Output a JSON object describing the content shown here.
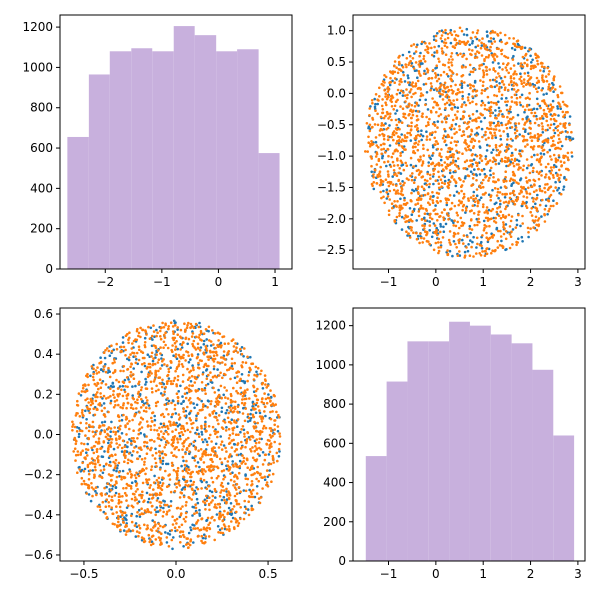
{
  "figure": {
    "colors": {
      "histogram": "#c8b0dd",
      "scatter_primary": "#1f77b4",
      "scatter_secondary": "#ff7f0e"
    }
  },
  "chart_data": [
    {
      "type": "bar",
      "subtype": "histogram",
      "title": "",
      "xlabel": "",
      "ylabel": "",
      "xlim": [
        -2.8,
        1.3
      ],
      "ylim": [
        0,
        1260
      ],
      "bin_edges": [
        -2.67,
        -2.29,
        -1.92,
        -1.54,
        -1.17,
        -0.79,
        -0.42,
        -0.04,
        0.33,
        0.71,
        1.08
      ],
      "values": [
        655,
        965,
        1080,
        1095,
        1080,
        1205,
        1160,
        1080,
        1090,
        575
      ],
      "x_ticks": [
        -2,
        -1,
        0,
        1
      ],
      "y_ticks": [
        0,
        200,
        400,
        600,
        800,
        1000,
        1200
      ],
      "x_tick_labels": [
        "−2",
        "−1",
        "0",
        "1"
      ],
      "y_tick_labels": [
        "0",
        "200",
        "400",
        "600",
        "800",
        "1000",
        "1200"
      ]
    },
    {
      "type": "scatter",
      "title": "",
      "xlabel": "",
      "ylabel": "",
      "xlim": [
        -1.75,
        3.15
      ],
      "ylim": [
        -2.8,
        1.25
      ],
      "shape": {
        "center": [
          0.7,
          -0.78
        ],
        "rx": 2.2,
        "ry": 1.85
      },
      "series": [
        {
          "color": "#ff7f0e",
          "count": 1900
        },
        {
          "color": "#1f77b4",
          "count": 650
        }
      ],
      "x_ticks": [
        -1,
        0,
        1,
        2,
        3
      ],
      "y_ticks": [
        -2.5,
        -2.0,
        -1.5,
        -1.0,
        -0.5,
        0.0,
        0.5,
        1.0
      ],
      "x_tick_labels": [
        "−1",
        "0",
        "1",
        "2",
        "3"
      ],
      "y_tick_labels": [
        "−2.5",
        "−2.0",
        "−1.5",
        "−1.0",
        "−0.5",
        "0.0",
        "0.5",
        "1.0"
      ]
    },
    {
      "type": "scatter",
      "title": "",
      "xlabel": "",
      "ylabel": "",
      "xlim": [
        -0.63,
        0.63
      ],
      "ylim": [
        -0.63,
        0.63
      ],
      "shape": {
        "center": [
          0.0,
          0.0
        ],
        "rx": 0.57,
        "ry": 0.57
      },
      "series": [
        {
          "color": "#ff7f0e",
          "count": 1900
        },
        {
          "color": "#1f77b4",
          "count": 650
        }
      ],
      "x_ticks": [
        -0.5,
        0.0,
        0.5
      ],
      "y_ticks": [
        -0.6,
        -0.4,
        -0.2,
        0.0,
        0.2,
        0.4,
        0.6
      ],
      "x_tick_labels": [
        "−0.5",
        "0.0",
        "0.5"
      ],
      "y_tick_labels": [
        "−0.6",
        "−0.4",
        "−0.2",
        "0.0",
        "0.2",
        "0.4",
        "0.6"
      ]
    },
    {
      "type": "bar",
      "subtype": "histogram",
      "title": "",
      "xlabel": "",
      "ylabel": "",
      "xlim": [
        -1.75,
        3.15
      ],
      "ylim": [
        0,
        1290
      ],
      "bin_edges": [
        -1.48,
        -1.04,
        -0.6,
        -0.16,
        0.28,
        0.72,
        1.16,
        1.6,
        2.04,
        2.48,
        2.92
      ],
      "values": [
        535,
        915,
        1120,
        1120,
        1220,
        1200,
        1155,
        1110,
        975,
        640
      ],
      "x_ticks": [
        -1,
        0,
        1,
        2,
        3
      ],
      "y_ticks": [
        0,
        200,
        400,
        600,
        800,
        1000,
        1200
      ],
      "x_tick_labels": [
        "−1",
        "0",
        "1",
        "2",
        "3"
      ],
      "y_tick_labels": [
        "0",
        "200",
        "400",
        "600",
        "800",
        "1000",
        "1200"
      ]
    }
  ]
}
